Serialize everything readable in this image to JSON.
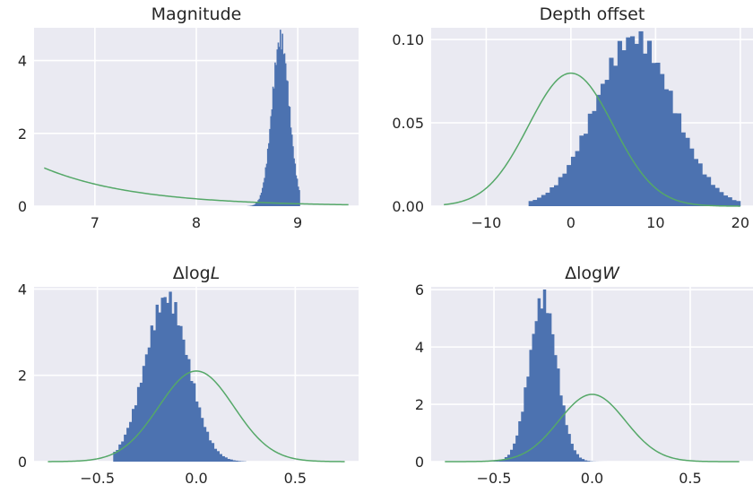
{
  "chart_data": [
    {
      "type": "histogram",
      "title": "Magnitude",
      "xlim": [
        6.4,
        9.6
      ],
      "ylim": [
        0,
        4.9
      ],
      "xticks": [
        7,
        8,
        9
      ],
      "xtick_labels": [
        "7",
        "8",
        "9"
      ],
      "yticks": [
        0,
        2,
        4
      ],
      "ytick_labels": [
        "0",
        "2",
        "4"
      ],
      "grid": true,
      "hist": {
        "type": "gaussian",
        "mean": 8.83,
        "sd": 0.085,
        "peak": 4.6,
        "range": [
          8.5,
          9.02
        ],
        "bins": 50,
        "color": "#4c72b0"
      },
      "curve": {
        "type": "exponential",
        "x_range": [
          6.5,
          9.5
        ],
        "amplitude": 1.05,
        "rate": 1.1,
        "color": "#55a868"
      }
    },
    {
      "type": "histogram",
      "title": "Depth offset",
      "xlim": [
        -16.5,
        21.5
      ],
      "ylim": [
        0,
        0.107
      ],
      "xticks": [
        -10,
        0,
        10,
        20
      ],
      "xtick_labels": [
        "−10",
        "0",
        "10",
        "20"
      ],
      "yticks": [
        0,
        0.05,
        0.1
      ],
      "ytick_labels": [
        "0.00",
        "0.05",
        "0.10"
      ],
      "grid": true,
      "hist": {
        "type": "gaussian",
        "mean": 7.5,
        "sd": 4.6,
        "peak": 0.101,
        "range": [
          -5,
          20
        ],
        "bins": 50,
        "color": "#4c72b0"
      },
      "curve": {
        "type": "normal",
        "x_range": [
          -15,
          20
        ],
        "mean": 0,
        "sd": 5,
        "color": "#55a868"
      }
    },
    {
      "type": "histogram",
      "title": "ΔlogL",
      "title_parts": [
        "Δlog",
        "L"
      ],
      "xlim": [
        -0.82,
        0.82
      ],
      "ylim": [
        0,
        4.05
      ],
      "xticks": [
        -0.5,
        0,
        0.5
      ],
      "xtick_labels": [
        "−0.5",
        "0.0",
        "0.5"
      ],
      "yticks": [
        0,
        2,
        4
      ],
      "ytick_labels": [
        "0",
        "2",
        "4"
      ],
      "grid": true,
      "hist": {
        "type": "gaussian",
        "mean": -0.15,
        "sd": 0.11,
        "peak": 3.8,
        "range": [
          -0.42,
          0.25
        ],
        "bins": 50,
        "color": "#4c72b0"
      },
      "curve": {
        "type": "normal",
        "x_range": [
          -0.75,
          0.75
        ],
        "mean": 0,
        "sd": 0.19,
        "color": "#55a868"
      }
    },
    {
      "type": "histogram",
      "title": "ΔlogW",
      "title_parts": [
        "Δlog",
        "W"
      ],
      "xlim": [
        -0.82,
        0.82
      ],
      "ylim": [
        0,
        6.1
      ],
      "xticks": [
        -0.5,
        0,
        0.5
      ],
      "xtick_labels": [
        "−0.5",
        "0.0",
        "0.5"
      ],
      "yticks": [
        0,
        2,
        4,
        6
      ],
      "ytick_labels": [
        "0",
        "2",
        "4",
        "6"
      ],
      "grid": true,
      "hist": {
        "type": "gaussian",
        "mean": -0.25,
        "sd": 0.07,
        "peak": 5.7,
        "range": [
          -0.6,
          0.1
        ],
        "bins": 50,
        "color": "#4c72b0"
      },
      "curve": {
        "type": "normal",
        "x_range": [
          -0.75,
          0.75
        ],
        "mean": 0,
        "sd": 0.17,
        "color": "#55a868"
      }
    }
  ]
}
